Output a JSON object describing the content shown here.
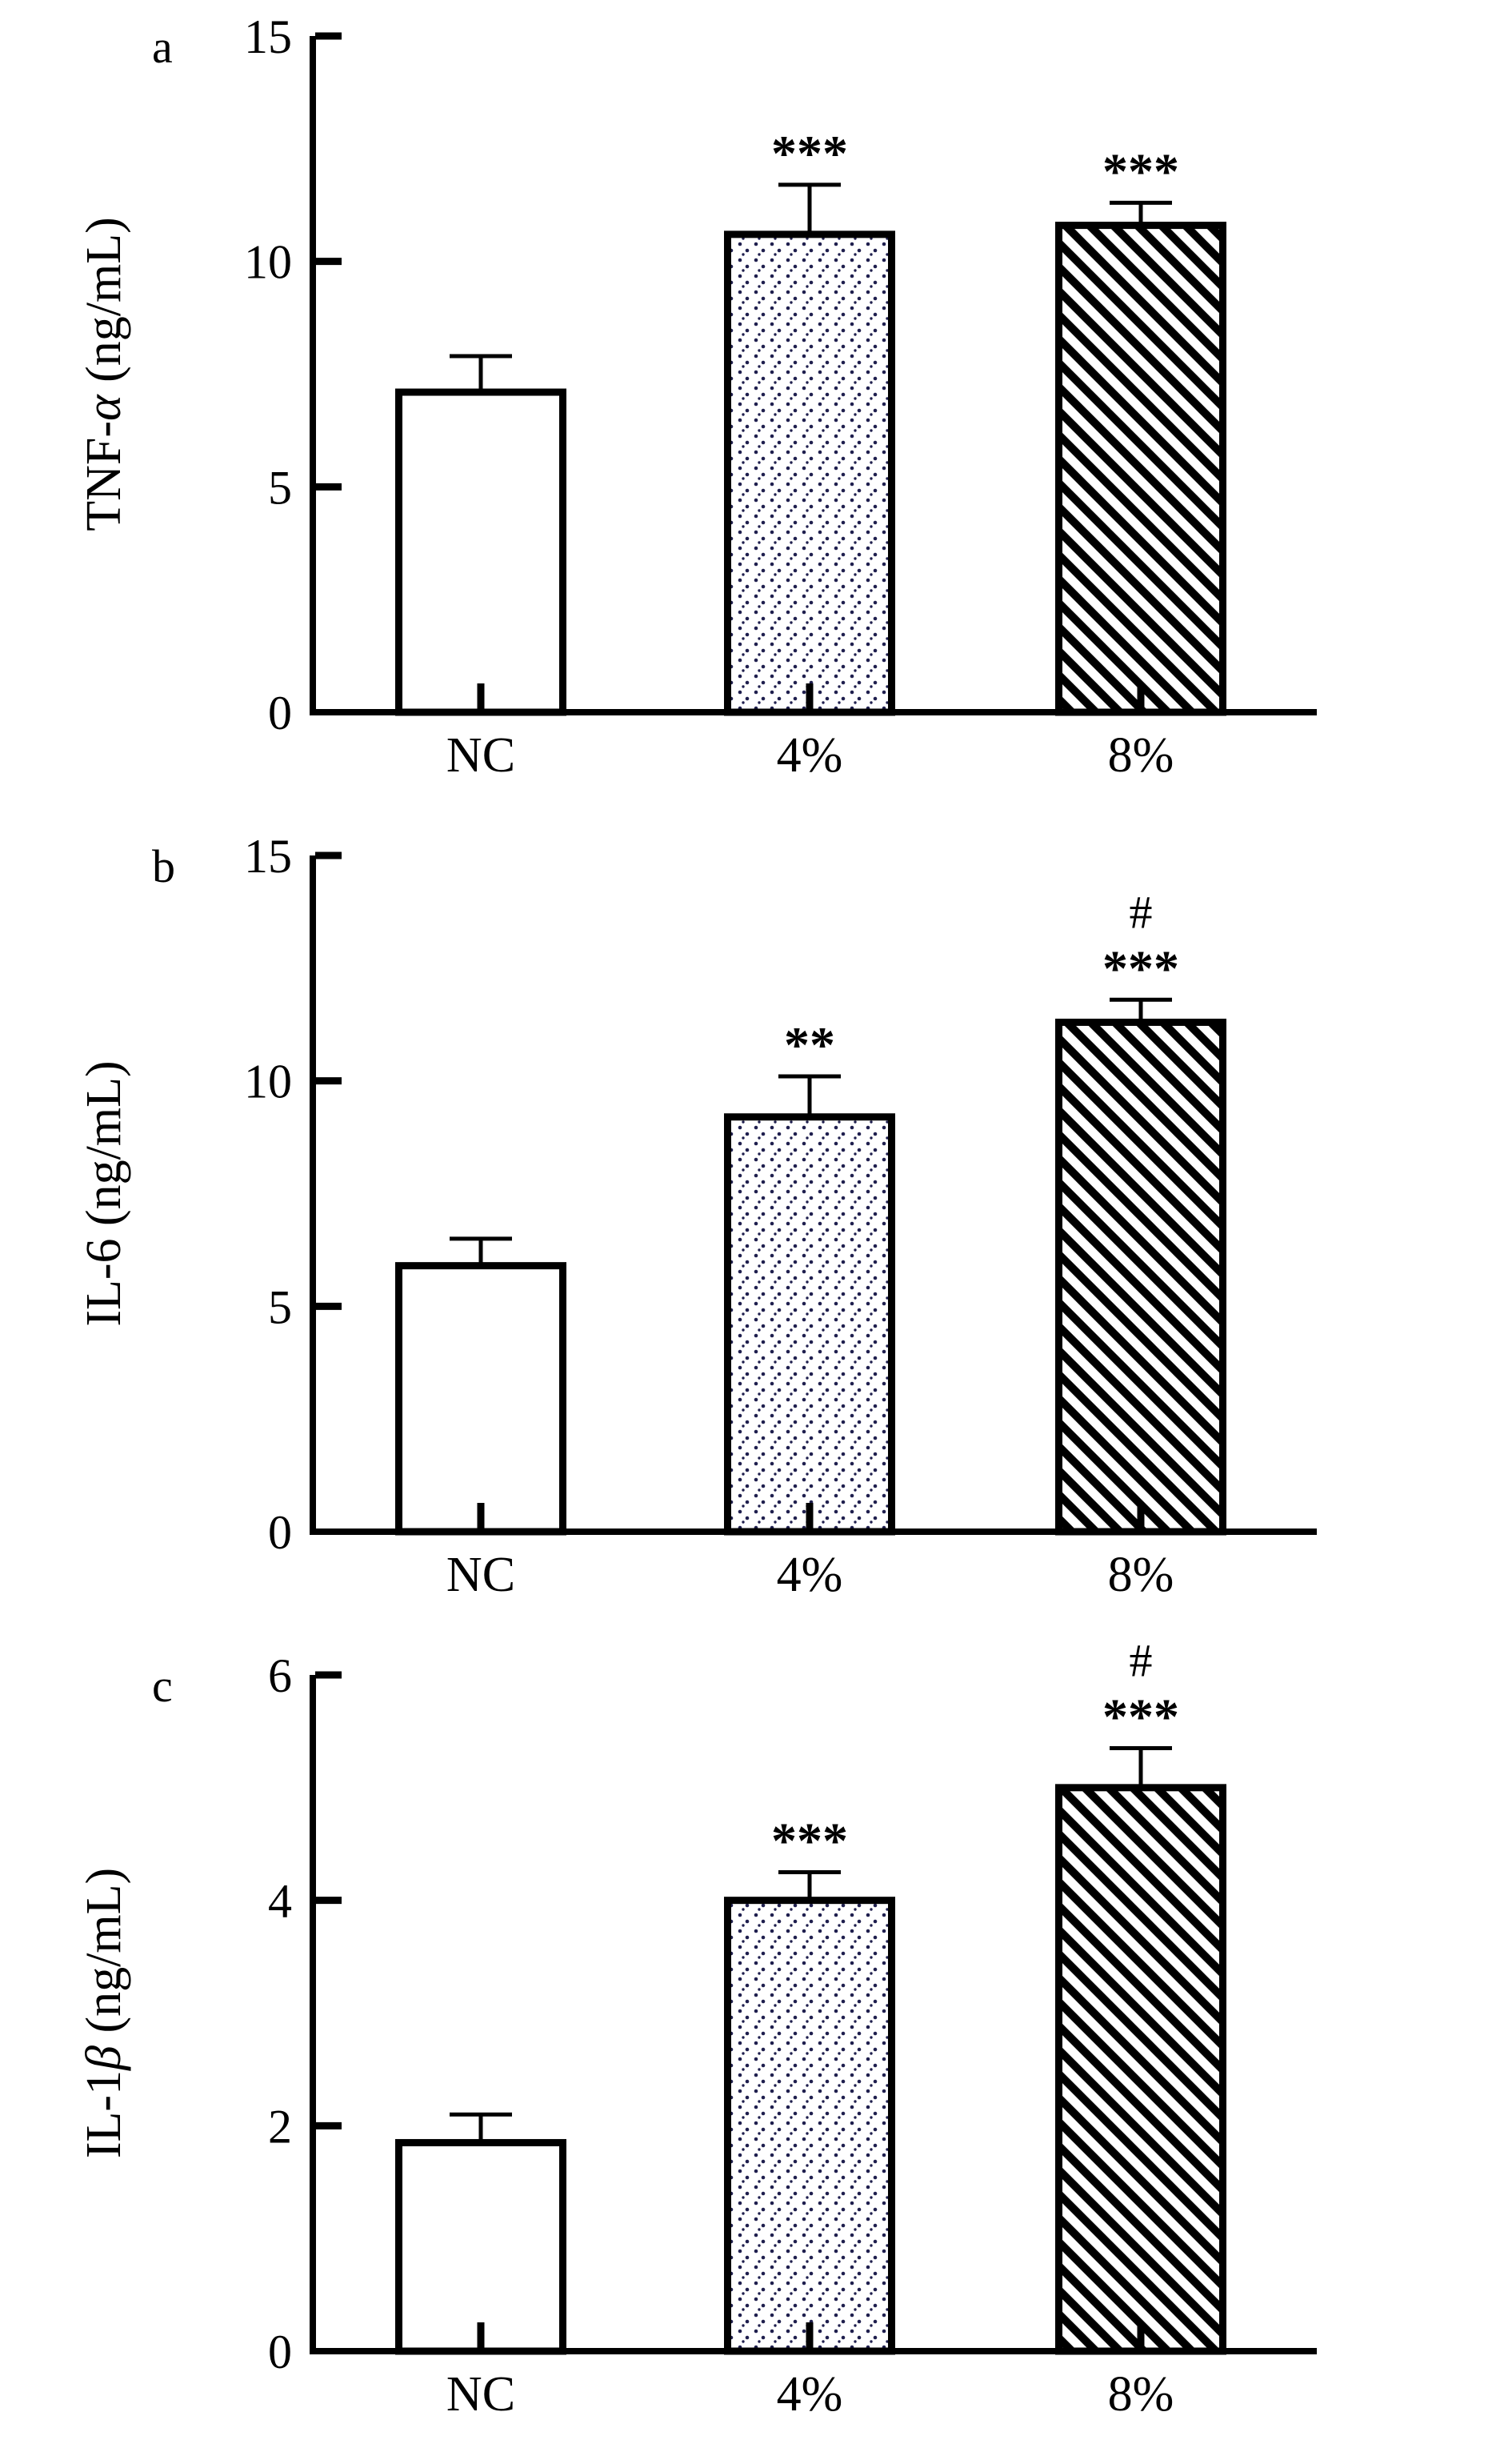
{
  "figure": {
    "background": "#ffffff",
    "axis_color": "#000000",
    "bar_fill": "#ffffff",
    "dot_color": "#1f1f4e",
    "hatch_color": "#000000"
  },
  "chart_data": [
    {
      "type": "bar",
      "panel_letter": "a",
      "title": "",
      "xlabel": "",
      "ylabel": "TNF-α (ng/mL)",
      "ylabel_parts": [
        {
          "text": "TNF-",
          "italic": false
        },
        {
          "text": "α",
          "italic": true
        },
        {
          "text": " (ng/mL)",
          "italic": false
        }
      ],
      "categories": [
        "NC",
        "4%",
        "8%"
      ],
      "values": [
        7.1,
        10.6,
        10.8
      ],
      "errors": [
        0.8,
        1.1,
        0.5
      ],
      "significance": [
        [],
        [
          "***"
        ],
        [
          "***"
        ]
      ],
      "ylim": [
        0,
        15
      ],
      "yticks": [
        0,
        5,
        10,
        15
      ],
      "bar_patterns": [
        "plain",
        "dots",
        "diagonal"
      ],
      "grid": false,
      "legend": "none"
    },
    {
      "type": "bar",
      "panel_letter": "b",
      "title": "",
      "xlabel": "",
      "ylabel": "IL-6 (ng/mL)",
      "ylabel_parts": [
        {
          "text": "IL-6 (ng/mL)",
          "italic": false
        }
      ],
      "categories": [
        "NC",
        "4%",
        "8%"
      ],
      "values": [
        5.9,
        9.2,
        11.3
      ],
      "errors": [
        0.6,
        0.9,
        0.5
      ],
      "significance": [
        [],
        [
          "**"
        ],
        [
          "#",
          "***"
        ]
      ],
      "ylim": [
        0,
        15
      ],
      "yticks": [
        0,
        5,
        10,
        15
      ],
      "bar_patterns": [
        "plain",
        "dots",
        "diagonal"
      ],
      "grid": false,
      "legend": "none"
    },
    {
      "type": "bar",
      "panel_letter": "c",
      "title": "",
      "xlabel": "",
      "ylabel": "IL-1β (ng/mL)",
      "ylabel_parts": [
        {
          "text": "IL-1",
          "italic": false
        },
        {
          "text": "β",
          "italic": true
        },
        {
          "text": " (ng/mL)",
          "italic": false
        }
      ],
      "categories": [
        "NC",
        "4%",
        "8%"
      ],
      "values": [
        1.85,
        4.0,
        5.0
      ],
      "errors": [
        0.25,
        0.25,
        0.35
      ],
      "significance": [
        [],
        [
          "***"
        ],
        [
          "#",
          "***"
        ]
      ],
      "ylim": [
        0,
        6
      ],
      "yticks": [
        0,
        2,
        4,
        6
      ],
      "bar_patterns": [
        "plain",
        "dots",
        "diagonal"
      ],
      "grid": false,
      "legend": "none"
    }
  ]
}
